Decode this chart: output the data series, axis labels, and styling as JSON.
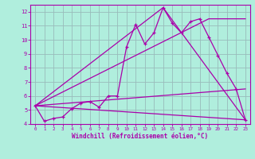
{
  "xlabel": "Windchill (Refroidissement éolien,°C)",
  "background_color": "#b0eedd",
  "line_color": "#aa00aa",
  "grid_color": "#99bbbb",
  "spine_color": "#aa00aa",
  "xlim": [
    -0.5,
    23.5
  ],
  "ylim": [
    4,
    12.5
  ],
  "xticks": [
    0,
    1,
    2,
    3,
    4,
    5,
    6,
    7,
    8,
    9,
    10,
    11,
    12,
    13,
    14,
    15,
    16,
    17,
    18,
    19,
    20,
    21,
    22,
    23
  ],
  "yticks": [
    4,
    5,
    6,
    7,
    8,
    9,
    10,
    11,
    12
  ],
  "zigzag_x": [
    0,
    1,
    2,
    3,
    4,
    5,
    6,
    7,
    8,
    9,
    10,
    11,
    12,
    13,
    14,
    15,
    16,
    17,
    18,
    19,
    20,
    21,
    22,
    23
  ],
  "zigzag_y": [
    5.3,
    4.2,
    4.4,
    4.5,
    5.1,
    5.5,
    5.6,
    5.2,
    6.0,
    6.0,
    9.5,
    11.1,
    9.7,
    10.5,
    12.3,
    11.2,
    10.5,
    11.3,
    11.5,
    10.2,
    8.9,
    7.6,
    6.5,
    4.3
  ],
  "line1_x": [
    0,
    23
  ],
  "line1_y": [
    5.3,
    4.3
  ],
  "line2_x": [
    0,
    23
  ],
  "line2_y": [
    5.3,
    6.5
  ],
  "line3_x": [
    0,
    19,
    23
  ],
  "line3_y": [
    5.3,
    11.5,
    11.5
  ],
  "line4_x": [
    0,
    14,
    23
  ],
  "line4_y": [
    5.3,
    12.3,
    4.3
  ]
}
